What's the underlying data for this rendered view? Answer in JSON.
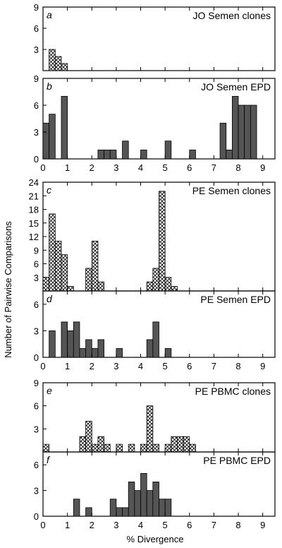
{
  "figure": {
    "ylabel": "Number of Pairwise Comparisons",
    "xlabel": "% Divergence"
  },
  "colors": {
    "solid_fill": "#555555",
    "clone_fill": "#ffffff",
    "stroke": "#000000"
  },
  "chart_data": [
    {
      "type": "bar",
      "letter": "a",
      "title": "JO Semen clones",
      "pattern": "crosshatch",
      "bin_width": 0.25,
      "xlim": [
        0,
        9.5
      ],
      "ylim": [
        0,
        9
      ],
      "yticks": [
        3,
        6,
        9
      ],
      "xticks": [],
      "bins": [
        [
          0.25,
          3
        ],
        [
          0.5,
          2
        ],
        [
          0.75,
          1
        ]
      ]
    },
    {
      "type": "bar",
      "letter": "b",
      "title": "JO Semen EPD",
      "pattern": "solid",
      "bin_width": 0.25,
      "xlim": [
        0,
        9.5
      ],
      "ylim": [
        0,
        9
      ],
      "yticks": [
        0,
        3,
        6,
        9
      ],
      "xticks": [
        0,
        1,
        2,
        3,
        4,
        5,
        6,
        7,
        8,
        9
      ],
      "bins": [
        [
          0,
          4
        ],
        [
          0.25,
          5
        ],
        [
          0.75,
          7
        ],
        [
          2.25,
          1
        ],
        [
          2.5,
          1
        ],
        [
          2.75,
          1
        ],
        [
          3.25,
          2
        ],
        [
          4,
          1
        ],
        [
          5,
          2
        ],
        [
          6,
          1
        ],
        [
          7.25,
          4
        ],
        [
          7.5,
          1
        ],
        [
          7.75,
          7
        ],
        [
          8,
          6
        ],
        [
          8.25,
          6
        ],
        [
          8.5,
          6
        ]
      ]
    },
    {
      "type": "bar",
      "letter": "c",
      "title": "PE Semen clones",
      "pattern": "crosshatch",
      "bin_width": 0.25,
      "xlim": [
        0,
        9.5
      ],
      "ylim": [
        0,
        24
      ],
      "yticks": [
        3,
        6,
        9,
        12,
        15,
        18,
        21,
        24
      ],
      "xticks": [],
      "bins": [
        [
          0,
          3
        ],
        [
          0.25,
          17
        ],
        [
          0.5,
          11
        ],
        [
          0.75,
          8
        ],
        [
          1,
          1
        ],
        [
          1.75,
          5
        ],
        [
          2,
          11
        ],
        [
          2.25,
          2
        ],
        [
          4.25,
          2
        ],
        [
          4.5,
          5
        ],
        [
          4.75,
          22
        ],
        [
          5,
          3
        ],
        [
          5.25,
          1
        ]
      ]
    },
    {
      "type": "bar",
      "letter": "d",
      "title": "PE Semen EPD",
      "pattern": "solid",
      "bin_width": 0.25,
      "xlim": [
        0,
        9.5
      ],
      "ylim": [
        0,
        7.5
      ],
      "yticks": [
        0,
        3,
        6
      ],
      "xticks": [
        0,
        1,
        2,
        3,
        4,
        5,
        6,
        7,
        8,
        9
      ],
      "bins": [
        [
          0.25,
          3
        ],
        [
          0.75,
          4
        ],
        [
          1,
          3
        ],
        [
          1.25,
          4
        ],
        [
          1.5,
          1
        ],
        [
          1.75,
          2
        ],
        [
          2,
          1
        ],
        [
          2.25,
          2
        ],
        [
          3,
          1
        ],
        [
          4.25,
          2
        ],
        [
          4.5,
          4
        ],
        [
          5,
          1
        ]
      ]
    },
    {
      "type": "bar",
      "letter": "e",
      "title": "PE PBMC clones",
      "pattern": "crosshatch",
      "bin_width": 0.25,
      "xlim": [
        0,
        9.5
      ],
      "ylim": [
        0,
        9
      ],
      "yticks": [
        3,
        6,
        9
      ],
      "xticks": [],
      "bins": [
        [
          0,
          1
        ],
        [
          1.5,
          2
        ],
        [
          1.75,
          4
        ],
        [
          2,
          1
        ],
        [
          2.25,
          2
        ],
        [
          2.5,
          1
        ],
        [
          3,
          1
        ],
        [
          3.5,
          1
        ],
        [
          4,
          1
        ],
        [
          4.25,
          6
        ],
        [
          4.5,
          1
        ],
        [
          5,
          1
        ],
        [
          5.25,
          2
        ],
        [
          5.5,
          2
        ],
        [
          5.75,
          2
        ],
        [
          6,
          1
        ]
      ]
    },
    {
      "type": "bar",
      "letter": "f",
      "title": "PE PBMC EPD",
      "pattern": "solid",
      "bin_width": 0.25,
      "xlim": [
        0,
        9.5
      ],
      "ylim": [
        0,
        7.5
      ],
      "yticks": [
        0,
        3,
        6
      ],
      "xticks": [
        0,
        1,
        2,
        3,
        4,
        5,
        6,
        7,
        8,
        9
      ],
      "bins": [
        [
          1.25,
          2
        ],
        [
          1.75,
          1
        ],
        [
          2.75,
          2
        ],
        [
          3,
          1
        ],
        [
          3.25,
          1
        ],
        [
          3.5,
          4
        ],
        [
          3.75,
          3
        ],
        [
          4,
          5
        ],
        [
          4.25,
          3
        ],
        [
          4.5,
          4
        ],
        [
          4.75,
          2
        ],
        [
          5,
          2
        ]
      ]
    }
  ]
}
